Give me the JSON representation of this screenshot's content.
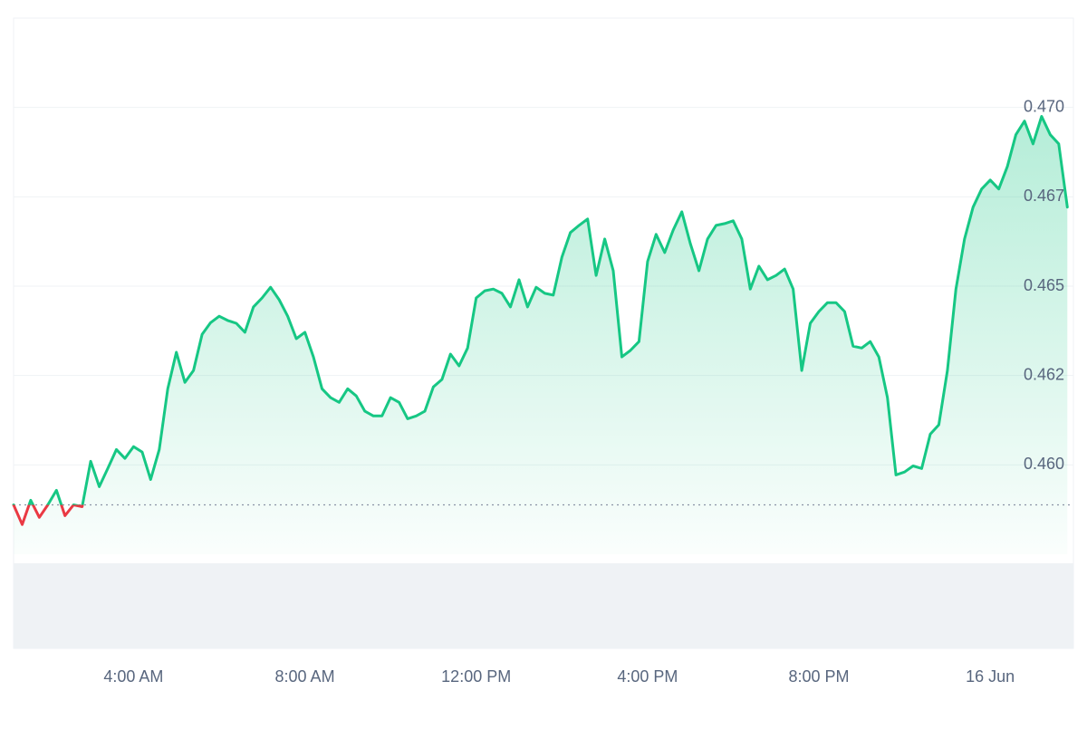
{
  "chart_data": {
    "type": "line",
    "x": [
      1.2,
      1.4,
      1.6,
      1.8,
      2.0,
      2.2,
      2.4,
      2.6,
      2.8,
      3.0,
      3.2,
      3.4,
      3.6,
      3.8,
      4.0,
      4.2,
      4.4,
      4.6,
      4.8,
      5.0,
      5.2,
      5.4,
      5.6,
      5.8,
      6.0,
      6.2,
      6.4,
      6.6,
      6.8,
      7.0,
      7.2,
      7.4,
      7.6,
      7.8,
      8.0,
      8.2,
      8.4,
      8.6,
      8.8,
      9.0,
      9.2,
      9.4,
      9.6,
      9.8,
      10.0,
      10.2,
      10.4,
      10.6,
      10.8,
      11.0,
      11.2,
      11.4,
      11.6,
      11.8,
      12.0,
      12.2,
      12.4,
      12.6,
      12.8,
      13.0,
      13.2,
      13.4,
      13.6,
      13.8,
      14.0,
      14.2,
      14.4,
      14.6,
      14.8,
      15.0,
      15.2,
      15.4,
      15.6,
      15.8,
      16.0,
      16.2,
      16.4,
      16.6,
      16.8,
      17.0,
      17.2,
      17.4,
      17.6,
      17.8,
      18.0,
      18.2,
      18.4,
      18.6,
      18.8,
      19.0,
      19.2,
      19.4,
      19.6,
      19.8,
      20.0,
      20.2,
      20.4,
      20.6,
      20.8,
      21.0,
      21.2,
      21.4,
      21.6,
      21.8,
      22.0,
      22.2,
      22.4,
      22.6,
      22.8,
      23.0,
      23.2,
      23.4,
      23.6,
      23.8,
      24.0,
      24.2,
      24.4,
      24.6,
      24.8,
      25.0,
      25.2,
      25.4,
      25.6,
      25.8
    ],
    "values": [
      0.45888,
      0.45833,
      0.45901,
      0.45853,
      0.45888,
      0.45929,
      0.45858,
      0.45888,
      0.45883,
      0.4601,
      0.45939,
      0.4599,
      0.46043,
      0.46018,
      0.46051,
      0.46036,
      0.45959,
      0.46043,
      0.46213,
      0.46315,
      0.46231,
      0.46264,
      0.46365,
      0.46398,
      0.46416,
      0.46404,
      0.46396,
      0.46371,
      0.46442,
      0.46467,
      0.46497,
      0.46462,
      0.46416,
      0.46353,
      0.46371,
      0.46302,
      0.46213,
      0.46188,
      0.46175,
      0.46213,
      0.46193,
      0.4615,
      0.46137,
      0.46137,
      0.46188,
      0.46175,
      0.46129,
      0.46137,
      0.4615,
      0.46218,
      0.46239,
      0.4631,
      0.46277,
      0.46327,
      0.46467,
      0.46487,
      0.46492,
      0.4648,
      0.46442,
      0.46518,
      0.46442,
      0.46497,
      0.4648,
      0.46475,
      0.46581,
      0.4665,
      0.4667,
      0.46688,
      0.4653,
      0.46632,
      0.46543,
      0.46302,
      0.4632,
      0.46345,
      0.46569,
      0.46645,
      0.46594,
      0.46657,
      0.46708,
      0.46619,
      0.46543,
      0.46632,
      0.4667,
      0.46675,
      0.46683,
      0.46632,
      0.46492,
      0.46556,
      0.46518,
      0.4653,
      0.46548,
      0.46492,
      0.46264,
      0.46396,
      0.46429,
      0.46454,
      0.46454,
      0.46429,
      0.46332,
      0.46327,
      0.46345,
      0.46302,
      0.46188,
      0.45972,
      0.4598,
      0.45997,
      0.4599,
      0.46086,
      0.46112,
      0.46264,
      0.46492,
      0.46632,
      0.46721,
      0.46772,
      0.46797,
      0.46772,
      0.46835,
      0.46924,
      0.46962,
      0.46898,
      0.46975,
      0.46924,
      0.46898,
      0.46721
    ],
    "baseline": 0.45888,
    "up_color": "#16c784",
    "down_color": "#ea3943",
    "xlim": [
      1.2,
      25.9
    ],
    "xticks": [
      {
        "value": 4,
        "label": "4:00 AM"
      },
      {
        "value": 8,
        "label": "8:00 AM"
      },
      {
        "value": 12,
        "label": "12:00 PM"
      },
      {
        "value": 16,
        "label": "4:00 PM"
      },
      {
        "value": 20,
        "label": "8:00 PM"
      },
      {
        "value": 24,
        "label": "16 Jun"
      }
    ],
    "ylim": [
      0.4575,
      0.4725
    ],
    "yticks": [
      {
        "value": 0.46,
        "label": "0.460"
      },
      {
        "value": 0.4625,
        "label": "0.462"
      },
      {
        "value": 0.465,
        "label": "0.465"
      },
      {
        "value": 0.4675,
        "label": "0.467"
      },
      {
        "value": 0.47,
        "label": "0.470"
      }
    ],
    "grid": true
  }
}
